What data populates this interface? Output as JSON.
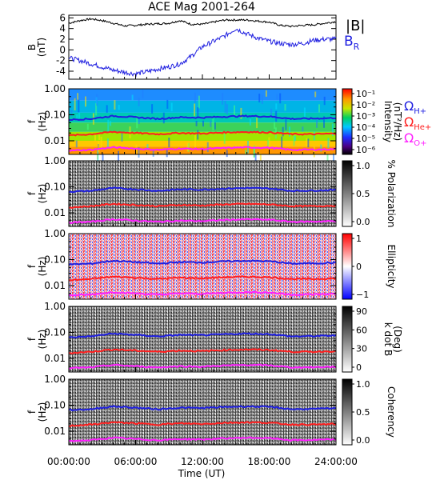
{
  "title": "ACE Mag 2001-264",
  "xlabel": "Time (UT)",
  "x_ticks": [
    "00:00:00",
    "06:00:00",
    "12:00:00",
    "18:00:00",
    "24:00:00"
  ],
  "panel1": {
    "ylabel_main": "B",
    "ylabel_unit": "(nT)",
    "y_ticks": [
      "6",
      "4",
      "2",
      "0",
      "-2",
      "-4"
    ],
    "legend_B": "|B|",
    "legend_BR_main": "B",
    "legend_BR_sub": "R",
    "color_B": "#000000",
    "color_BR": "#1f1fe0"
  },
  "f_axis": {
    "ylabel_main": "f",
    "ylabel_unit": "(Hz)",
    "y_ticks": [
      "1.00",
      "0.10",
      "0.01"
    ]
  },
  "gyro_labels": [
    {
      "main": "Ω",
      "sub": "H+",
      "color": "#1f1fe0"
    },
    {
      "main": "Ω",
      "sub": "He+",
      "color": "#ff2020"
    },
    {
      "main": "Ω",
      "sub": "O+",
      "color": "#ff20ff"
    }
  ],
  "spectrogram_panels": [
    {
      "id": "intensity",
      "scheme": "rainbow",
      "cb_title": "Intensity",
      "cb_unit": "(nT²/Hz)",
      "cb_ticks": [
        "10⁻¹",
        "10⁻²",
        "10⁻³",
        "10⁻⁴",
        "10⁻⁵",
        "10⁻⁶"
      ]
    },
    {
      "id": "polarization",
      "scheme": "gray",
      "cb_title": "% Polarization",
      "cb_unit": "",
      "cb_ticks": [
        "1.0",
        "0.5",
        "0.0"
      ]
    },
    {
      "id": "ellipticity",
      "scheme": "bwr",
      "cb_title": "Ellipticity",
      "cb_unit": "",
      "cb_ticks": [
        "1",
        "0",
        "−1"
      ]
    },
    {
      "id": "kdotb",
      "scheme": "gray",
      "cb_title": "k dot B",
      "cb_unit": "(Deg)",
      "cb_ticks": [
        "90",
        "60",
        "30",
        "0"
      ]
    },
    {
      "id": "coherency",
      "scheme": "gray",
      "cb_title": "Coherency",
      "cb_unit": "",
      "cb_ticks": [
        "1.0",
        "0.5",
        "0.0"
      ]
    }
  ],
  "chart_data": {
    "type": "line",
    "title": "ACE Mag 2001-264",
    "xlabel": "Time (UT)",
    "xlim_hours": [
      0,
      24
    ],
    "panel1": {
      "ylabel": "B (nT)",
      "ylim": [
        -5.5,
        6.5
      ],
      "x_hours": [
        0,
        1,
        2,
        3,
        4,
        5,
        6,
        7,
        8,
        9,
        10,
        11,
        12,
        13,
        14,
        15,
        16,
        17,
        18,
        19,
        20,
        21,
        22,
        23,
        24
      ],
      "series": [
        {
          "name": "|B|",
          "color": "#000000",
          "values": [
            5.0,
            5.5,
            5.8,
            5.5,
            5.0,
            4.5,
            4.6,
            4.8,
            4.9,
            5.0,
            5.5,
            4.8,
            4.8,
            5.2,
            5.6,
            5.6,
            5.6,
            5.4,
            5.2,
            4.6,
            4.4,
            4.6,
            4.7,
            5.0,
            5.3
          ]
        },
        {
          "name": "B_R",
          "color": "#1f1fe0",
          "values": [
            -1.5,
            -2.0,
            -2.6,
            -3.2,
            -3.8,
            -4.2,
            -4.5,
            -4.1,
            -3.6,
            -3.2,
            -2.6,
            -1.2,
            0.6,
            1.6,
            2.6,
            4.0,
            3.0,
            2.2,
            1.6,
            1.2,
            1.0,
            1.2,
            1.8,
            2.0,
            2.0
          ]
        }
      ]
    },
    "f_ylim_hz": [
      0.003,
      1.0
    ],
    "gyrofrequencies_hz": {
      "x_hours": [
        0,
        2,
        4,
        6,
        8,
        10,
        12,
        14,
        16,
        18,
        20,
        22,
        24
      ],
      "H+": [
        0.065,
        0.07,
        0.09,
        0.08,
        0.07,
        0.08,
        0.078,
        0.085,
        0.09,
        0.086,
        0.07,
        0.072,
        0.076
      ],
      "He+": [
        0.016,
        0.018,
        0.022,
        0.02,
        0.018,
        0.02,
        0.019,
        0.021,
        0.022,
        0.021,
        0.018,
        0.018,
        0.019
      ],
      "O+": [
        0.0042,
        0.0045,
        0.0056,
        0.005,
        0.0045,
        0.005,
        0.0048,
        0.0053,
        0.0056,
        0.0054,
        0.0045,
        0.0046,
        0.0048
      ]
    }
  }
}
